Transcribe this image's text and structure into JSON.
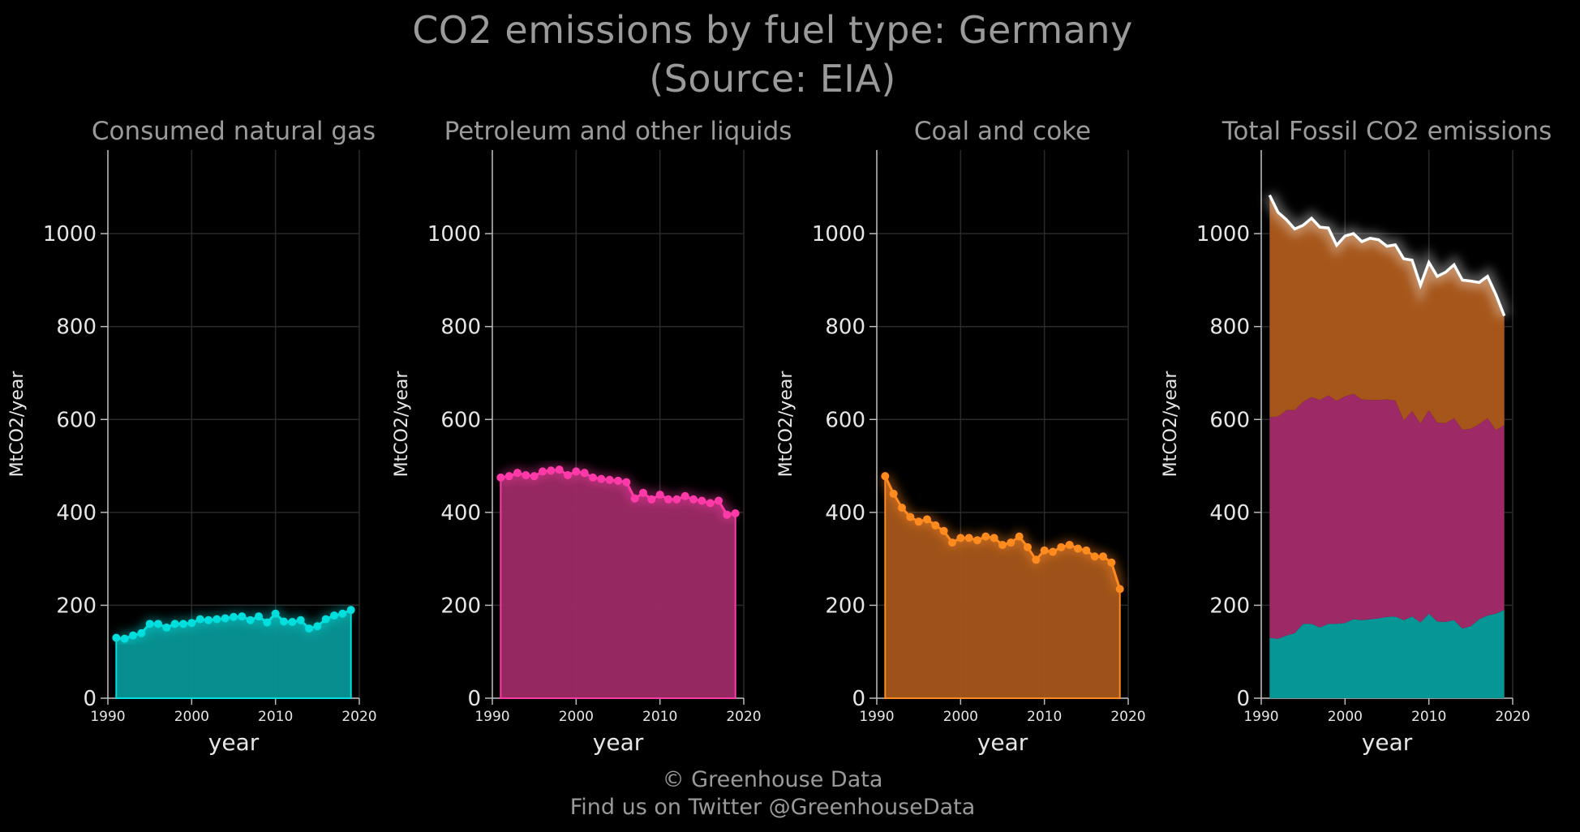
{
  "title_line1": "CO2 emissions by fuel type: Germany",
  "title_line2": "(Source: EIA)",
  "credit_line1": "© Greenhouse Data",
  "credit_line2": "Find us on Twitter @GreenhouseData",
  "colors": {
    "background": "#000000",
    "gas": "#00dede",
    "gas_fill": "#079696",
    "petroleum": "#ff3aa8",
    "petroleum_fill": "#9d2a66",
    "coal": "#ff8a1e",
    "coal_fill": "#a6561a",
    "total_line": "#ffffff",
    "grid": "#2a2a2a",
    "axis": "#bbbbbb",
    "title_text": "#9a9a9a"
  },
  "chart_data": [
    {
      "type": "line",
      "title": "Consumed natural gas",
      "xlabel": "year",
      "ylabel": "MtCO2/year",
      "xlim": [
        1990,
        2020
      ],
      "ylim": [
        0,
        1180
      ],
      "xticks": [
        1990,
        2000,
        2010,
        2020
      ],
      "yticks": [
        0,
        200,
        400,
        600,
        800,
        1000
      ],
      "grid": true,
      "series": [
        {
          "key": "gas",
          "x": [
            1991,
            1992,
            1993,
            1994,
            1995,
            1996,
            1997,
            1998,
            1999,
            2000,
            2001,
            2002,
            2003,
            2004,
            2005,
            2006,
            2007,
            2008,
            2009,
            2010,
            2011,
            2012,
            2013,
            2014,
            2015,
            2016,
            2017,
            2018,
            2019
          ],
          "values": [
            130,
            128,
            135,
            140,
            160,
            160,
            152,
            160,
            160,
            162,
            170,
            168,
            170,
            172,
            175,
            176,
            168,
            176,
            163,
            182,
            165,
            164,
            168,
            150,
            155,
            170,
            178,
            182,
            190
          ]
        }
      ]
    },
    {
      "type": "line",
      "title": "Petroleum and other liquids",
      "xlabel": "year",
      "ylabel": "MtCO2/year",
      "xlim": [
        1990,
        2020
      ],
      "ylim": [
        0,
        1180
      ],
      "xticks": [
        1990,
        2000,
        2010,
        2020
      ],
      "yticks": [
        0,
        200,
        400,
        600,
        800,
        1000
      ],
      "grid": true,
      "series": [
        {
          "key": "petroleum",
          "x": [
            1991,
            1992,
            1993,
            1994,
            1995,
            1996,
            1997,
            1998,
            1999,
            2000,
            2001,
            2002,
            2003,
            2004,
            2005,
            2006,
            2007,
            2008,
            2009,
            2010,
            2011,
            2012,
            2013,
            2014,
            2015,
            2016,
            2017,
            2018,
            2019
          ],
          "values": [
            475,
            478,
            485,
            480,
            478,
            488,
            490,
            492,
            480,
            488,
            485,
            475,
            472,
            470,
            468,
            465,
            430,
            442,
            428,
            438,
            428,
            428,
            435,
            428,
            425,
            420,
            425,
            395,
            398
          ]
        }
      ]
    },
    {
      "type": "line",
      "title": "Coal and coke",
      "xlabel": "year",
      "ylabel": "MtCO2/year",
      "xlim": [
        1990,
        2020
      ],
      "ylim": [
        0,
        1180
      ],
      "xticks": [
        1990,
        2000,
        2010,
        2020
      ],
      "yticks": [
        0,
        200,
        400,
        600,
        800,
        1000
      ],
      "grid": true,
      "series": [
        {
          "key": "coal",
          "x": [
            1991,
            1992,
            1993,
            1994,
            1995,
            1996,
            1997,
            1998,
            1999,
            2000,
            2001,
            2002,
            2003,
            2004,
            2005,
            2006,
            2007,
            2008,
            2009,
            2010,
            2011,
            2012,
            2013,
            2014,
            2015,
            2016,
            2017,
            2018,
            2019
          ],
          "values": [
            478,
            440,
            410,
            390,
            380,
            385,
            372,
            360,
            335,
            345,
            345,
            340,
            348,
            345,
            330,
            335,
            348,
            325,
            298,
            318,
            315,
            325,
            330,
            322,
            318,
            305,
            305,
            292,
            235
          ]
        }
      ]
    },
    {
      "type": "area",
      "stacked": true,
      "title": "Total Fossil CO2 emissions",
      "xlabel": "year",
      "ylabel": "MtCO2/year",
      "xlim": [
        1990,
        2020
      ],
      "ylim": [
        0,
        1180
      ],
      "xticks": [
        1990,
        2000,
        2010,
        2020
      ],
      "yticks": [
        0,
        200,
        400,
        600,
        800,
        1000
      ],
      "grid": true,
      "series": [
        {
          "key": "gas",
          "x": [
            1991,
            1992,
            1993,
            1994,
            1995,
            1996,
            1997,
            1998,
            1999,
            2000,
            2001,
            2002,
            2003,
            2004,
            2005,
            2006,
            2007,
            2008,
            2009,
            2010,
            2011,
            2012,
            2013,
            2014,
            2015,
            2016,
            2017,
            2018,
            2019
          ],
          "values": [
            130,
            128,
            135,
            140,
            160,
            160,
            152,
            160,
            160,
            162,
            170,
            168,
            170,
            172,
            175,
            176,
            168,
            176,
            163,
            182,
            165,
            164,
            168,
            150,
            155,
            170,
            178,
            182,
            190
          ]
        },
        {
          "key": "petroleum",
          "x": [
            1991,
            1992,
            1993,
            1994,
            1995,
            1996,
            1997,
            1998,
            1999,
            2000,
            2001,
            2002,
            2003,
            2004,
            2005,
            2006,
            2007,
            2008,
            2009,
            2010,
            2011,
            2012,
            2013,
            2014,
            2015,
            2016,
            2017,
            2018,
            2019
          ],
          "values": [
            475,
            478,
            485,
            480,
            478,
            488,
            490,
            492,
            480,
            488,
            485,
            475,
            472,
            470,
            468,
            465,
            430,
            442,
            428,
            438,
            428,
            428,
            435,
            428,
            425,
            420,
            425,
            395,
            398
          ]
        },
        {
          "key": "coal",
          "x": [
            1991,
            1992,
            1993,
            1994,
            1995,
            1996,
            1997,
            1998,
            1999,
            2000,
            2001,
            2002,
            2003,
            2004,
            2005,
            2006,
            2007,
            2008,
            2009,
            2010,
            2011,
            2012,
            2013,
            2014,
            2015,
            2016,
            2017,
            2018,
            2019
          ],
          "values": [
            478,
            440,
            410,
            390,
            380,
            385,
            372,
            360,
            335,
            345,
            345,
            340,
            348,
            345,
            330,
            335,
            348,
            325,
            298,
            318,
            315,
            325,
            330,
            322,
            318,
            305,
            305,
            292,
            235
          ]
        }
      ],
      "total_line": true
    }
  ]
}
